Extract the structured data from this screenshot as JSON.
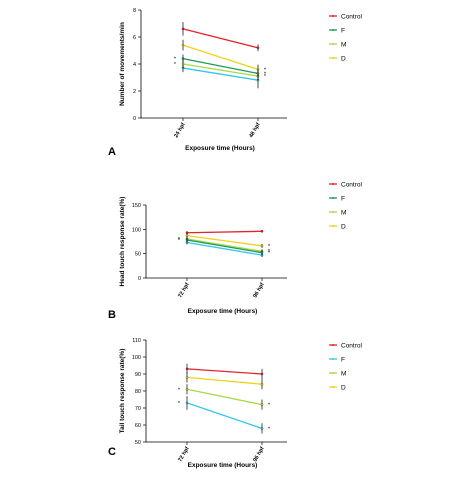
{
  "chart_data": [
    {
      "type": "line",
      "panel_label": "A",
      "categories": [
        "24 hpf",
        "48 hpf"
      ],
      "xlabel": "Exposure time (Hours)",
      "ylabel": "Number of movements/min",
      "ylim": [
        0,
        8
      ],
      "yticks": [
        "0",
        "2",
        "4",
        "6",
        "8"
      ],
      "legend_position": "right",
      "series": [
        {
          "name": "Control",
          "color": "#e0262b",
          "values": [
            6.6,
            5.2
          ],
          "err": [
            0.5,
            0.25
          ]
        },
        {
          "name": "F",
          "color": "#1a9a57",
          "values": [
            4.4,
            3.3
          ],
          "err": [
            0.3,
            0.3
          ]
        },
        {
          "name": "M",
          "color": "#a8d94d",
          "values": [
            4.0,
            3.1
          ],
          "err": [
            0.3,
            0.3
          ]
        },
        {
          "name": "D",
          "color": "#f0d21e",
          "values": [
            5.4,
            3.6
          ],
          "err": [
            0.4,
            0.35
          ]
        }
      ],
      "extra_series": [
        {
          "color": "#35c6ef",
          "values": [
            3.7,
            2.8
          ],
          "err": [
            0.3,
            0.6
          ]
        }
      ],
      "annotations": [
        {
          "text": "*",
          "series": 1,
          "point": 0
        },
        {
          "text": "*",
          "series": 2,
          "point": 0
        },
        {
          "text": "*",
          "series": 1,
          "point": 1
        },
        {
          "text": "*",
          "series": 2,
          "point": 1
        },
        {
          "text": "*",
          "series": 3,
          "point": 1
        }
      ]
    },
    {
      "type": "line",
      "panel_label": "B",
      "categories": [
        "72 hpf",
        "96 hpf"
      ],
      "xlabel": "Exposure time (Hours)",
      "ylabel": "Head touch response rate(%)",
      "ylim": [
        0,
        150
      ],
      "yticks": [
        "0",
        "50",
        "100",
        "150"
      ],
      "legend_position": "right",
      "series": [
        {
          "name": "Control",
          "color": "#e0262b",
          "values": [
            93,
            96
          ],
          "err": [
            3,
            2
          ]
        },
        {
          "name": "F",
          "color": "#1a9a57",
          "values": [
            78,
            52
          ],
          "err": [
            5,
            4
          ]
        },
        {
          "name": "M",
          "color": "#a8d94d",
          "values": [
            80,
            55
          ],
          "err": [
            5,
            4
          ]
        },
        {
          "name": "D",
          "color": "#f0d21e",
          "values": [
            87,
            66
          ],
          "err": [
            5,
            4
          ]
        }
      ],
      "extra_series": [
        {
          "color": "#35c6ef",
          "values": [
            73,
            47
          ],
          "err": [
            4,
            4
          ]
        }
      ],
      "annotations": [
        {
          "text": "*",
          "series": 1,
          "point": 0
        },
        {
          "text": "*",
          "series": 2,
          "point": 0
        },
        {
          "text": "*",
          "series": 1,
          "point": 1
        },
        {
          "text": "*",
          "series": 2,
          "point": 1
        },
        {
          "text": "*",
          "series": 3,
          "point": 1
        }
      ]
    },
    {
      "type": "line",
      "panel_label": "C",
      "categories": [
        "72 hpf",
        "96 hpf"
      ],
      "xlabel": "Exposure time (Hours)",
      "ylabel": "Tail touch response rate(%)",
      "ylim": [
        50,
        110
      ],
      "yticks": [
        "50",
        "60",
        "70",
        "80",
        "90",
        "100",
        "110"
      ],
      "legend_position": "right",
      "series": [
        {
          "name": "Control",
          "color": "#e0262b",
          "values": [
            93,
            90
          ],
          "err": [
            3,
            3
          ]
        },
        {
          "name": "F",
          "color": "#35c6ef",
          "values": [
            73,
            58
          ],
          "err": [
            4,
            3
          ]
        },
        {
          "name": "M",
          "color": "#a8d94d",
          "values": [
            81,
            72
          ],
          "err": [
            3,
            3
          ]
        },
        {
          "name": "D",
          "color": "#f0d21e",
          "values": [
            88,
            84
          ],
          "err": [
            3,
            3
          ]
        }
      ],
      "extra_series": [],
      "annotations": [
        {
          "text": "*",
          "series": 1,
          "point": 0
        },
        {
          "text": "*",
          "series": 2,
          "point": 0
        },
        {
          "text": "*",
          "series": 1,
          "point": 1
        },
        {
          "text": "*",
          "series": 2,
          "point": 1
        }
      ]
    }
  ]
}
